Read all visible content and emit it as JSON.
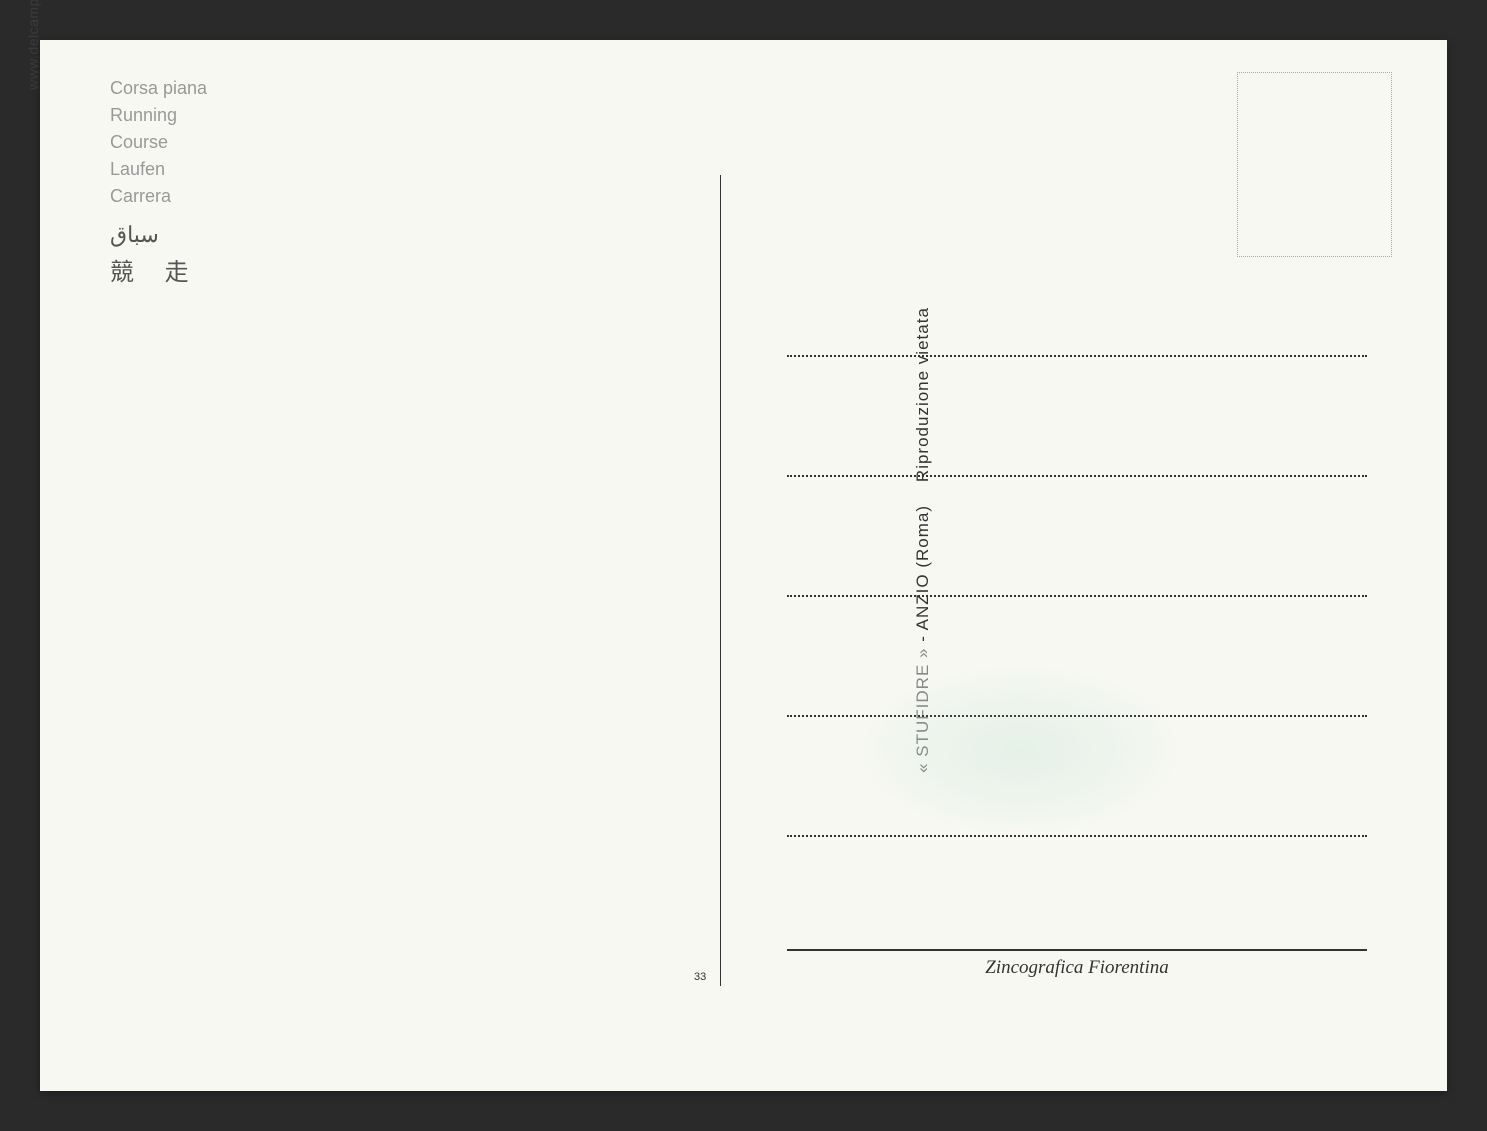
{
  "watermark": "www.delcampe.net",
  "titles": {
    "italian": "Corsa piana",
    "english": "Running",
    "french": "Course",
    "german": "Laufen",
    "spanish": "Carrera",
    "arabic": "سباق",
    "chinese": "競 走"
  },
  "publisher": {
    "name": "« STUFIDRE »",
    "location": "ANZIO (Roma)",
    "rights": "Riproduzione vietata"
  },
  "card_number": "33",
  "printer": "Zincografica Fiorentina",
  "colors": {
    "card_bg": "#f8f8f3",
    "page_bg": "#2a2a2a",
    "title_text": "#999999",
    "cjk_text": "#555555",
    "line_color": "#333333",
    "stamp_border": "#aaaaaa"
  }
}
